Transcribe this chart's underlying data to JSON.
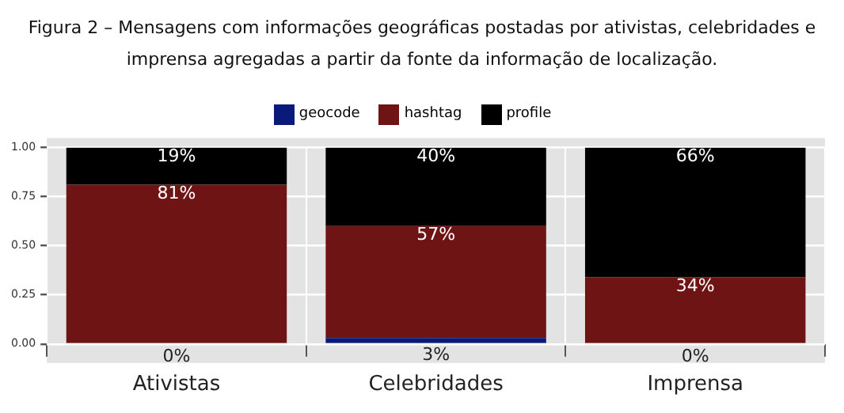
{
  "chart_data": {
    "type": "bar",
    "title": "Figura 2 – Mensagens com informações geográficas postadas por ativistas, celebridades e imprensa agregadas a partir da fonte da informação de localização.",
    "categories": [
      "Ativistas",
      "Celebridades",
      "Imprensa"
    ],
    "series": [
      {
        "name": "geocode",
        "color": "#0a1a7a",
        "values": [
          0,
          0.03,
          0
        ],
        "value_labels": [
          "0%",
          "3%",
          "0%"
        ]
      },
      {
        "name": "hashtag",
        "color": "#6e1414",
        "values": [
          0.81,
          0.57,
          0.34
        ],
        "value_labels": [
          "81%",
          "57%",
          "34%"
        ]
      },
      {
        "name": "profile",
        "color": "#000000",
        "values": [
          0.19,
          0.4,
          0.66
        ],
        "value_labels": [
          "19%",
          "40%",
          "66%"
        ]
      }
    ],
    "stacked": true,
    "ylim": [
      0,
      1
    ],
    "yticks": [
      {
        "value": 0,
        "label": "0.00"
      },
      {
        "value": 0.25,
        "label": "0.25"
      },
      {
        "value": 0.5,
        "label": "0.50"
      },
      {
        "value": 0.75,
        "label": "0.75"
      },
      {
        "value": 1,
        "label": "1.00"
      }
    ],
    "grid": true,
    "legend": "top"
  }
}
